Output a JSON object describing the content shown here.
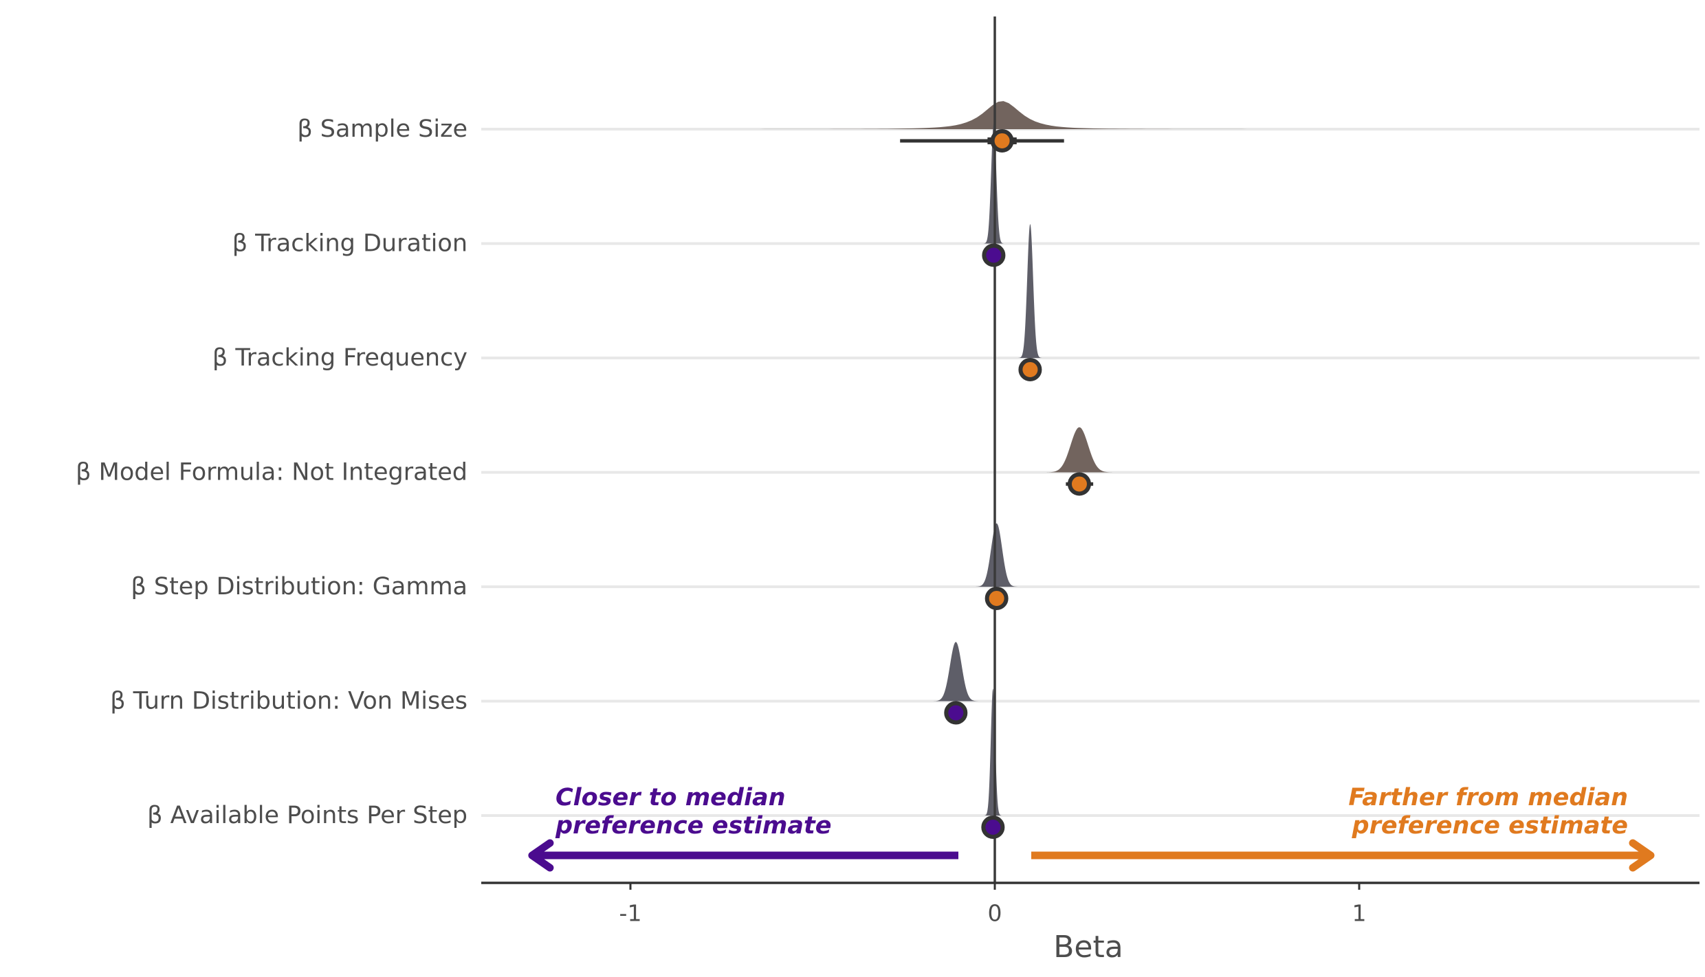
{
  "chart_data": {
    "type": "scatter",
    "title": "",
    "xlabel": "Beta",
    "ylabel": "",
    "xlim": [
      -1.41,
      1.93
    ],
    "x_ticks": [
      -1,
      0,
      1
    ],
    "x_tick_labels": [
      "-1",
      "0",
      "1"
    ],
    "grid": "horizontal major lines only",
    "reference_line_x": 0,
    "colors": {
      "closer": "#4B0C8F",
      "farther": "#E07A1F",
      "density": "#555560",
      "point_border": "#333333",
      "axis": "#333333",
      "grid": "#e8e8e8",
      "text": "#4d4d4d"
    },
    "categories": [
      "β Sample Size",
      "β Tracking Duration",
      "β Tracking Frequency",
      "β Model Formula: Not Integrated",
      "β Step Distribution: Gamma",
      "β Turn Distribution: Von Mises",
      "β Available Points Per Step"
    ],
    "estimates": [
      {
        "median": 0.02,
        "ci_inner": [
          -0.02,
          0.06
        ],
        "ci_outer": [
          -0.26,
          0.19
        ],
        "direction": "farther",
        "density_sd": 0.055,
        "density_peak": 0.2,
        "density_range": [
          -1.3,
          1.9
        ]
      },
      {
        "median": -0.003,
        "ci_inner": [
          -0.006,
          0.001
        ],
        "ci_outer": [
          -0.008,
          0.003
        ],
        "direction": "closer",
        "density_sd": 0.007,
        "density_peak": 0.85,
        "density_range": [
          -0.06,
          0.06
        ]
      },
      {
        "median": 0.097,
        "ci_inner": [
          0.093,
          0.101
        ],
        "ci_outer": [
          0.09,
          0.104
        ],
        "direction": "farther",
        "density_sd": 0.008,
        "density_peak": 0.95,
        "density_range": [
          0.05,
          0.15
        ]
      },
      {
        "median": 0.232,
        "ci_inner": [
          0.215,
          0.25
        ],
        "ci_outer": [
          0.195,
          0.27
        ],
        "direction": "farther",
        "density_sd": 0.024,
        "density_peak": 0.32,
        "density_range": [
          0.12,
          0.34
        ]
      },
      {
        "median": 0.005,
        "ci_inner": [
          0.0,
          0.012
        ],
        "ci_outer": [
          -0.007,
          0.018
        ],
        "direction": "farther",
        "density_sd": 0.015,
        "density_peak": 0.45,
        "density_range": [
          -0.08,
          0.09
        ]
      },
      {
        "median": -0.107,
        "ci_inner": [
          -0.115,
          -0.1
        ],
        "ci_outer": [
          -0.125,
          -0.09
        ],
        "direction": "closer",
        "density_sd": 0.016,
        "density_peak": 0.42,
        "density_range": [
          -0.19,
          -0.03
        ]
      },
      {
        "median": -0.005,
        "ci_inner": [
          -0.008,
          -0.002
        ],
        "ci_outer": [
          -0.01,
          0.0
        ],
        "direction": "closer",
        "density_sd": 0.006,
        "density_peak": 0.9,
        "density_range": [
          -0.05,
          0.04
        ]
      }
    ],
    "annotations": {
      "closer_line1": "Closer to median",
      "closer_line2": "preference estimate",
      "farther_line1": "Farther from median",
      "farther_line2": "preference estimate",
      "closer_arrow": [
        -0.1,
        -1.27
      ],
      "farther_arrow": [
        0.1,
        1.8
      ]
    }
  }
}
